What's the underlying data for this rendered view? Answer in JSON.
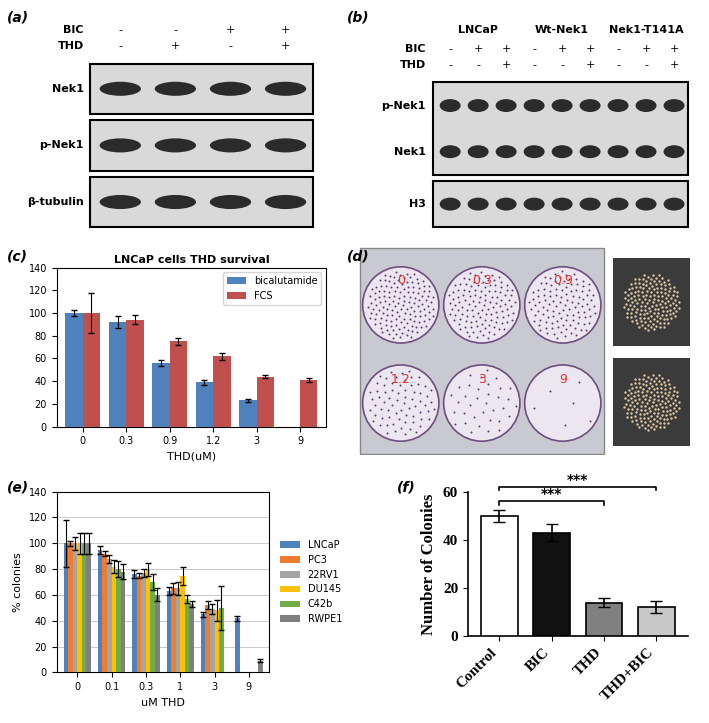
{
  "chart_data": [
    {
      "type": "blot",
      "panel": "(a)",
      "conditions": [
        {
          "name": "BIC",
          "signs": [
            "-",
            "-",
            "+",
            "+"
          ]
        },
        {
          "name": "THD",
          "signs": [
            "-",
            "+",
            "-",
            "+"
          ]
        }
      ],
      "boxes": [
        [
          "Nek1"
        ],
        [
          "p-Nek1"
        ],
        [
          "β-tubulin"
        ]
      ]
    },
    {
      "type": "blot",
      "panel": "(b)",
      "groups": [
        "LNCaP",
        "Wt-Nek1",
        "Nek1-T141A"
      ],
      "conditions": [
        {
          "name": "BIC",
          "signs": [
            "-",
            "+",
            "+",
            "-",
            "+",
            "+",
            "-",
            "+",
            "+"
          ]
        },
        {
          "name": "THD",
          "signs": [
            "-",
            "-",
            "+",
            "-",
            "-",
            "+",
            "-",
            "-",
            "+"
          ]
        }
      ],
      "boxes": [
        [
          "p-Nek1",
          "Nek1"
        ],
        [
          "H3"
        ]
      ]
    },
    {
      "type": "bar",
      "panel": "(c)",
      "title": "LNCaP cells THD survival",
      "categories": [
        "0",
        "0.3",
        "0.9",
        "1.2",
        "3",
        "9"
      ],
      "x_label": "THD(uM)",
      "series": [
        {
          "name": "bicalutamide",
          "color": "#4f81bd",
          "values": [
            100,
            92,
            56,
            39,
            23,
            null
          ],
          "errors": [
            3,
            5,
            3,
            2,
            1,
            null
          ]
        },
        {
          "name": "FCS",
          "color": "#c0504d",
          "values": [
            100,
            94,
            75,
            62,
            44,
            41
          ],
          "errors": [
            18,
            4,
            3,
            3,
            1,
            2
          ]
        }
      ],
      "ylim": [
        0,
        140
      ],
      "yticks": [
        0,
        20,
        40,
        60,
        80,
        100,
        120,
        140
      ],
      "legend": "upper right",
      "grid": false
    },
    {
      "type": "plate",
      "panel": "(d)",
      "labels": [
        "0",
        "0.3",
        "0.9",
        "1.2",
        "3",
        "9"
      ],
      "color": "#e8302a"
    },
    {
      "type": "bar",
      "panel": "(e)",
      "categories": [
        "0",
        "0.1",
        "0.3",
        "1",
        "3",
        "9"
      ],
      "x_label": "uM THD",
      "y_label": "% colonies",
      "series": [
        {
          "name": "LNCaP",
          "color": "#4f81bd",
          "values": [
            100,
            95,
            76,
            63,
            45,
            42
          ],
          "errors": [
            18,
            3,
            3,
            3,
            2,
            2
          ]
        },
        {
          "name": "PC3",
          "color": "#ed7d31",
          "values": [
            100,
            92,
            75,
            65,
            52,
            null
          ],
          "errors": [
            2,
            2,
            2,
            4,
            3,
            null
          ]
        },
        {
          "name": "22RV1",
          "color": "#a5a5a5",
          "values": [
            100,
            88,
            77,
            65,
            49,
            null
          ],
          "errors": [
            5,
            3,
            3,
            5,
            4,
            null
          ]
        },
        {
          "name": "DU145",
          "color": "#ffc000",
          "values": [
            100,
            82,
            80,
            75,
            48,
            null
          ],
          "errors": [
            8,
            5,
            5,
            7,
            8,
            null
          ]
        },
        {
          "name": "C42b",
          "color": "#70ad47",
          "values": [
            100,
            80,
            70,
            57,
            50,
            null
          ],
          "errors": [
            8,
            6,
            6,
            3,
            17,
            null
          ]
        },
        {
          "name": "RWPE1",
          "color": "#7f7f7f",
          "values": [
            100,
            78,
            60,
            53,
            null,
            9
          ],
          "errors": [
            8,
            6,
            5,
            2,
            null,
            1
          ]
        }
      ],
      "ylim": [
        0,
        140
      ],
      "yticks": [
        0,
        20,
        40,
        60,
        80,
        100,
        120,
        140
      ],
      "legend": "right",
      "grid": true
    },
    {
      "type": "bar",
      "panel": "(f)",
      "categories": [
        "Control",
        "BIC",
        "THD",
        "THD+BIC"
      ],
      "values": [
        50,
        43,
        14,
        12
      ],
      "errors": [
        2.5,
        3.5,
        2,
        2.5
      ],
      "colors": [
        "#ffffff",
        "#111111",
        "#808080",
        "#c8c8c8"
      ],
      "y_label": "Number of Colonies",
      "ylim": [
        0,
        60
      ],
      "yticks": [
        0,
        20,
        40,
        60
      ],
      "grid": false,
      "annotations": [
        {
          "text": "***",
          "from": "Control",
          "to": "THD"
        },
        {
          "text": "***",
          "from": "Control",
          "to": "THD+BIC"
        }
      ]
    }
  ]
}
